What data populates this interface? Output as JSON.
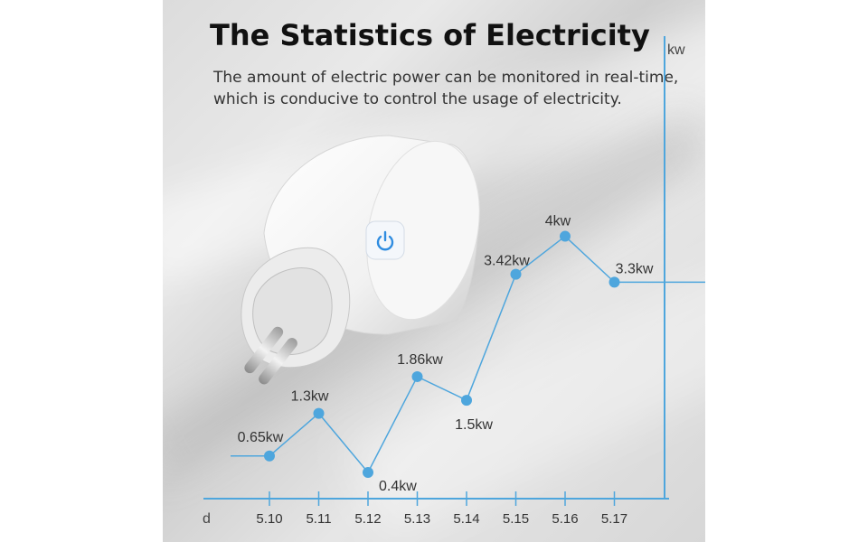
{
  "header": {
    "title": "The Statistics of Electricity",
    "subtitle_lines": [
      "The amount of electric power can be monitored in real-time,",
      "which is conducive to control the usage of electricity."
    ]
  },
  "chart_data": {
    "type": "line",
    "title": "The Statistics of Electricity",
    "xlabel": "d",
    "ylabel": "kw",
    "categories": [
      "5.10",
      "5.11",
      "5.12",
      "5.13",
      "5.14",
      "5.15",
      "5.16",
      "5.17"
    ],
    "series": [
      {
        "values": [
          0.65,
          1.3,
          0.4,
          1.86,
          1.5,
          3.42,
          4,
          3.3
        ],
        "labels": [
          "0.65kw",
          "1.3kw",
          "0.4kw",
          "1.86kw",
          "1.5kw",
          "3.42kw",
          "4kw",
          "3.3kw"
        ]
      }
    ],
    "ylim": [
      0,
      5.5
    ],
    "grid": false,
    "legend": "none",
    "line_color": "#4ea6dd",
    "axis_color": "#4ea6dd"
  },
  "device": {
    "icon": "power-icon",
    "accent_color": "#2f8ce0"
  }
}
